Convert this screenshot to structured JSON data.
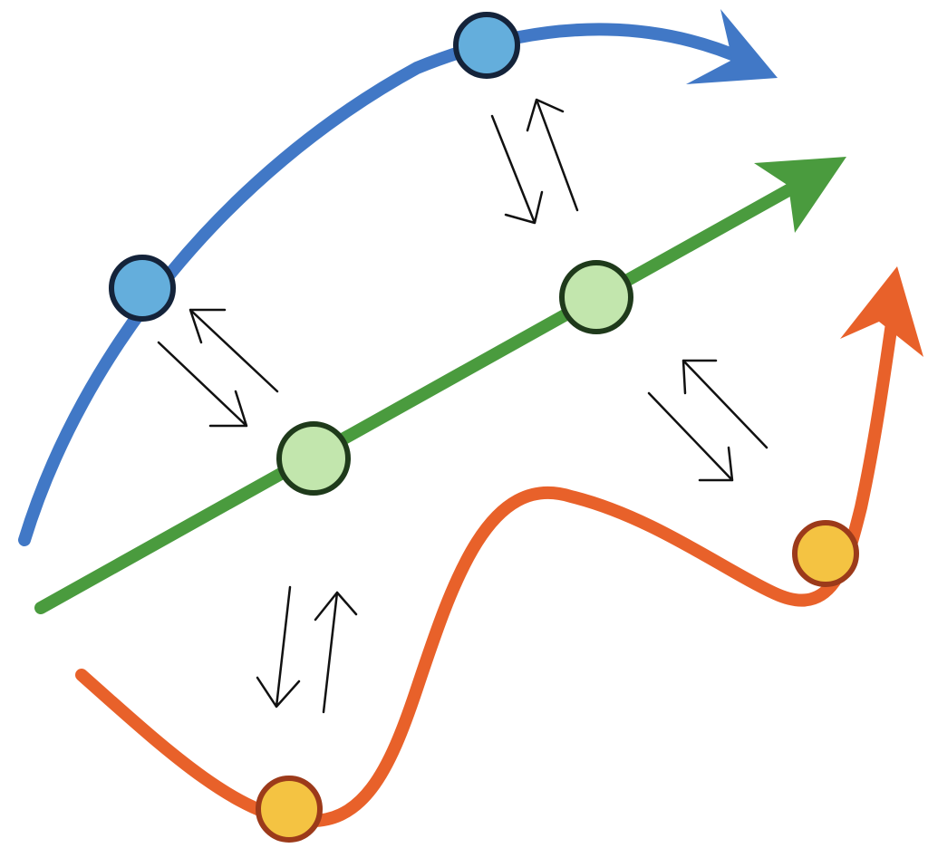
{
  "colors": {
    "blue_path": "#4178c6",
    "blue_node_fill": "#64aedc",
    "blue_node_stroke": "#14233a",
    "green_path": "#4a9b3e",
    "green_node_fill": "#c2e6ad",
    "green_node_stroke": "#1f3a1b",
    "orange_path": "#e8612a",
    "orange_node_fill": "#f4c342",
    "orange_node_stroke": "#9c3a1a",
    "exchange_arrow": "#111111",
    "background": "#ffffff"
  },
  "paths": [
    {
      "name": "upper-path",
      "color_key": "blue_path",
      "node_count": 2
    },
    {
      "name": "middle-path",
      "color_key": "green_path",
      "node_count": 2
    },
    {
      "name": "lower-path",
      "color_key": "orange_path",
      "node_count": 2
    }
  ],
  "exchanges": [
    {
      "between": [
        "upper-path",
        "middle-path"
      ],
      "count": 2,
      "symbol": "bidirectional-arrow-pair"
    },
    {
      "between": [
        "middle-path",
        "lower-path"
      ],
      "count": 2,
      "symbol": "bidirectional-arrow-pair"
    }
  ]
}
